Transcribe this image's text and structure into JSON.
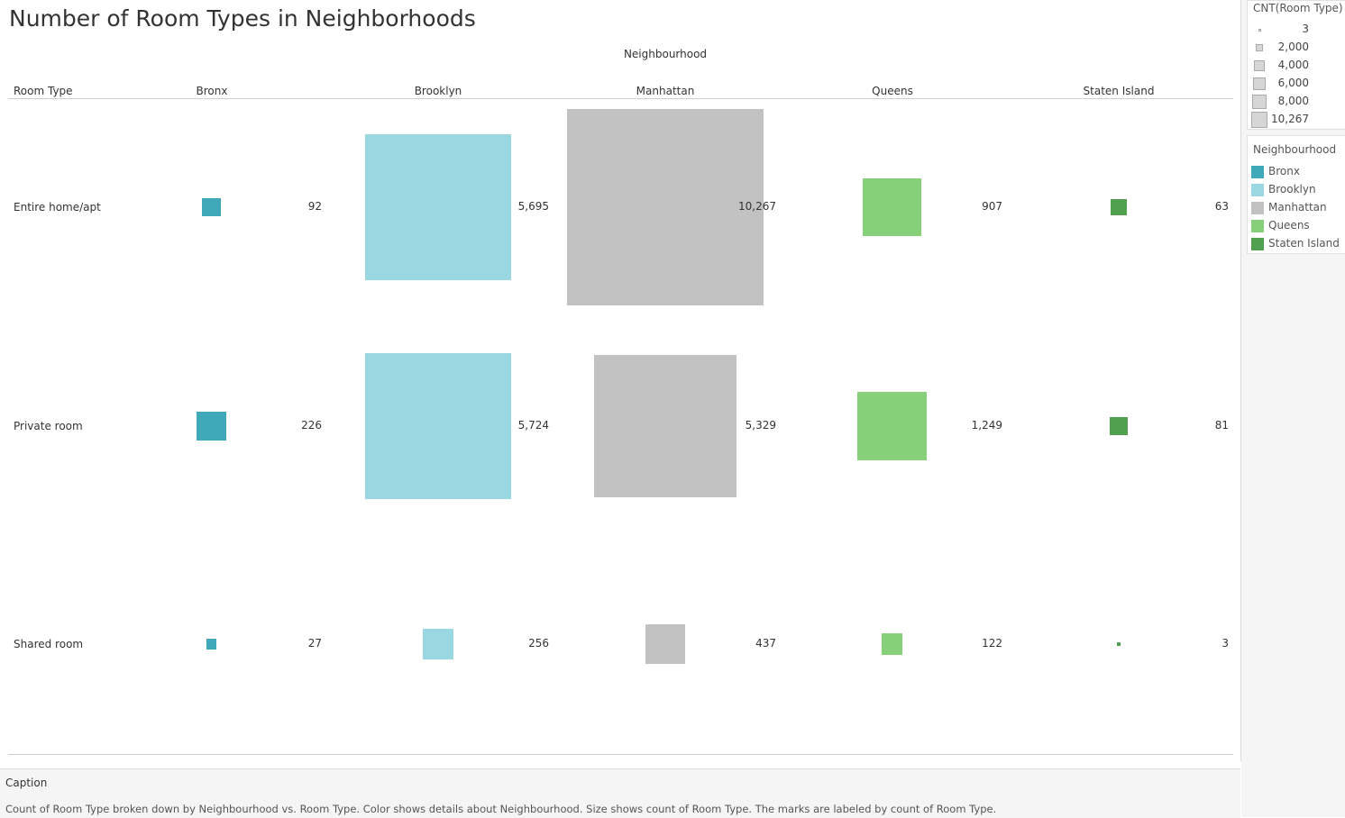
{
  "title": "Number of Room Types in Neighborhoods",
  "column_group_label": "Neighbourhood",
  "row_field_label": "Room Type",
  "chart_data": {
    "type": "heatmap",
    "title": "Number of Room Types in Neighborhoods",
    "xlabel": "Neighbourhood",
    "ylabel": "Room Type",
    "columns": [
      "Bronx",
      "Brooklyn",
      "Manhattan",
      "Queens",
      "Staten Island"
    ],
    "rows": [
      "Entire home/apt",
      "Private room",
      "Shared room"
    ],
    "values": [
      [
        92,
        5695,
        10267,
        907,
        63
      ],
      [
        226,
        5724,
        5329,
        1249,
        81
      ],
      [
        27,
        256,
        437,
        122,
        3
      ]
    ],
    "labels": [
      [
        "92",
        "5,695",
        "10,267",
        "907",
        "63"
      ],
      [
        "226",
        "5,724",
        "5,329",
        "1,249",
        "81"
      ],
      [
        "27",
        "256",
        "437",
        "122",
        "3"
      ]
    ],
    "size_encoding": "CNT(Room Type)",
    "color_encoding": "Neighbourhood"
  },
  "colors": {
    "Bronx": "#3fa9b9",
    "Brooklyn": "#9ad8e1",
    "Manhattan": "#c2c2c2",
    "Queens": "#86d07a",
    "Staten Island": "#50a050"
  },
  "size_legend": {
    "title": "CNT(Room Type)",
    "items": [
      {
        "label": "3",
        "value": 3
      },
      {
        "label": "2,000",
        "value": 2000
      },
      {
        "label": "4,000",
        "value": 4000
      },
      {
        "label": "6,000",
        "value": 6000
      },
      {
        "label": "8,000",
        "value": 8000
      },
      {
        "label": "10,267",
        "value": 10267
      }
    ]
  },
  "color_legend": {
    "title": "Neighbourhood",
    "items": [
      "Bronx",
      "Brooklyn",
      "Manhattan",
      "Queens",
      "Staten Island"
    ]
  },
  "caption": {
    "title": "Caption",
    "text": "Count of Room Type broken down by Neighbourhood vs. Room Type.  Color shows details about Neighbourhood.  Size shows count of Room Type.  The marks are labeled by count of Room Type."
  }
}
